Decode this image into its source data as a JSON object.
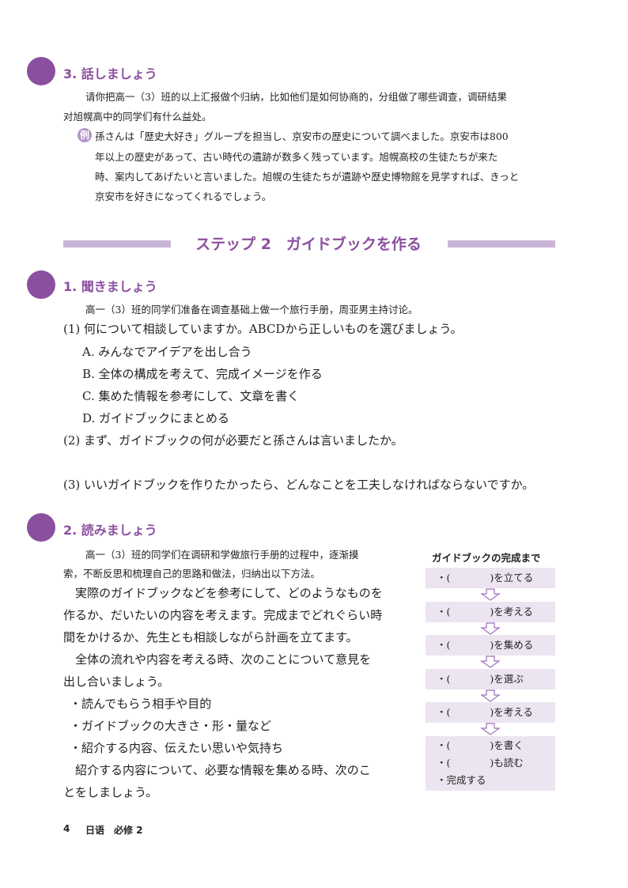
{
  "section3": {
    "title": "3. 話しましょう",
    "intro": [
      "请你把高一（3）班的以上汇报做个归纳，比如他们是如何协商的，分组做了哪些调查，调研结果",
      "对旭幌高中的同学们有什么益处。"
    ],
    "example_badge": "例",
    "example": [
      "孫さんは「歴史大好き」グループを担当し、京安市の歴史について調べました。京安市は800",
      "年以上の歴史があって、古い時代の遺跡が数多く残っています。旭幌高校の生徒たちが来た",
      "時、案内してあげたいと言いました。旭幌の生徒たちが遺跡や歴史博物館を見学すれば、きっと",
      "京安市を好きになってくれるでしょう。"
    ]
  },
  "step": {
    "title": "ステップ 2　ガイドブックを作る"
  },
  "section1": {
    "title": "1.  聞きましょう",
    "intro": "高一（3）班的同学们准备在调查基础上做一个旅行手册，周亚男主持讨论。",
    "q1": "(1) 何について相談していますか。ABCDから正しいものを選びましょう。",
    "options": [
      "A. みんなでアイデアを出し合う",
      "B. 全体の構成を考えて、完成イメージを作る",
      "C. 集めた情報を参考にして、文章を書く",
      "D. ガイドブックにまとめる"
    ],
    "q2": "(2) まず、ガイドブックの何が必要だと孫さんは言いましたか。",
    "q3": "(3) いいガイドブックを作りたかったら、どんなことを工夫しなければならないですか。"
  },
  "section2": {
    "title": "2.  読みましょう",
    "intro": [
      "高一（3）班的同学们在调研和学做旅行手册的过程中，逐渐摸",
      "索，不断反思和梳理自己的思路和做法，归纳出以下方法。"
    ],
    "body": [
      "　実際のガイドブックなどを参考にして、どのようなものを",
      "作るか、だいたいの内容を考えます。完成までどれぐらい時",
      "間をかけるか、先生とも相談しながら計画を立てます。",
      "　全体の流れや内容を考える時、次のことについて意見を",
      "出し合いましょう。",
      "・読んでもらう相手や目的",
      "・ガイドブックの大きさ・形・量など",
      "・紹介する内容、伝えたい思いや気持ち",
      "　紹介する内容について、必要な情報を集める時、次のこ",
      "とをしましょう。"
    ],
    "flow_title": "ガイドブックの完成まで",
    "flow": [
      "・(　　　　)を立てる",
      "・(　　　　)を考える",
      "・(　　　　)を集める",
      "・(　　　　)を選ぶ",
      "・(　　　　)を考える"
    ],
    "flow_last": [
      "・(　　　　)を書く",
      "・(　　　　)も読む",
      "・完成する"
    ]
  },
  "footer": {
    "page": "4",
    "book": "日语　必修 2"
  },
  "colors": {
    "accent": "#8b4f9f",
    "bar": "#c9b4d6",
    "box": "#ece5f1"
  }
}
